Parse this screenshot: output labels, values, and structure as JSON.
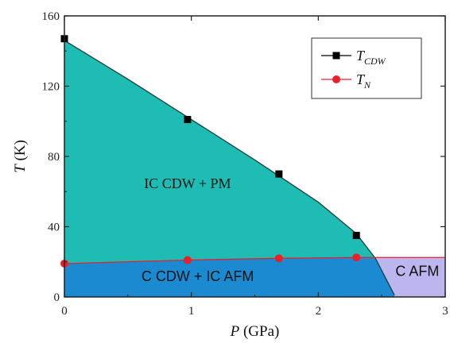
{
  "chart_data": {
    "type": "scatter",
    "xlabel_var": "P",
    "xlabel_unit": " (GPa)",
    "ylabel_var": "T",
    "ylabel_unit": " (K)",
    "xlim": [
      0,
      3
    ],
    "ylim": [
      0,
      160
    ],
    "xticks": [
      0,
      1,
      2,
      3
    ],
    "yticks": [
      0,
      40,
      80,
      120,
      160
    ],
    "legend_position": "top-right",
    "series": [
      {
        "key": "tcdw",
        "name_main": "T",
        "name_sub": "CDW",
        "marker": "square",
        "color": "#000000",
        "points": [
          [
            0.0,
            147
          ],
          [
            0.97,
            101
          ],
          [
            1.69,
            70
          ],
          [
            2.3,
            35
          ]
        ]
      },
      {
        "key": "tn",
        "name_main": "T",
        "name_sub": "N",
        "marker": "circle",
        "color": "#e8202a",
        "points": [
          [
            0.0,
            19
          ],
          [
            0.97,
            21
          ],
          [
            1.69,
            22
          ],
          [
            2.3,
            22.5
          ]
        ]
      }
    ],
    "phase_boundary_upper": [
      [
        0.0,
        146
      ],
      [
        0.5,
        124
      ],
      [
        1.0,
        101
      ],
      [
        1.5,
        78
      ],
      [
        2.0,
        54
      ],
      [
        2.3,
        36
      ],
      [
        2.45,
        22
      ],
      [
        2.6,
        1
      ]
    ],
    "regions": [
      {
        "key": "ic_cdw_pm",
        "label": "IC CDW + PM",
        "color": "#1fbcb4",
        "label_at": [
          0.97,
          62
        ]
      },
      {
        "key": "c_cdw_ic_afm",
        "label": "C CDW + IC AFM",
        "color": "#1b8ad1",
        "label_at": [
          1.05,
          9
        ]
      },
      {
        "key": "c_afm",
        "label": "C AFM",
        "color": "#bdb6ee",
        "label_at": [
          2.78,
          12
        ]
      }
    ]
  }
}
